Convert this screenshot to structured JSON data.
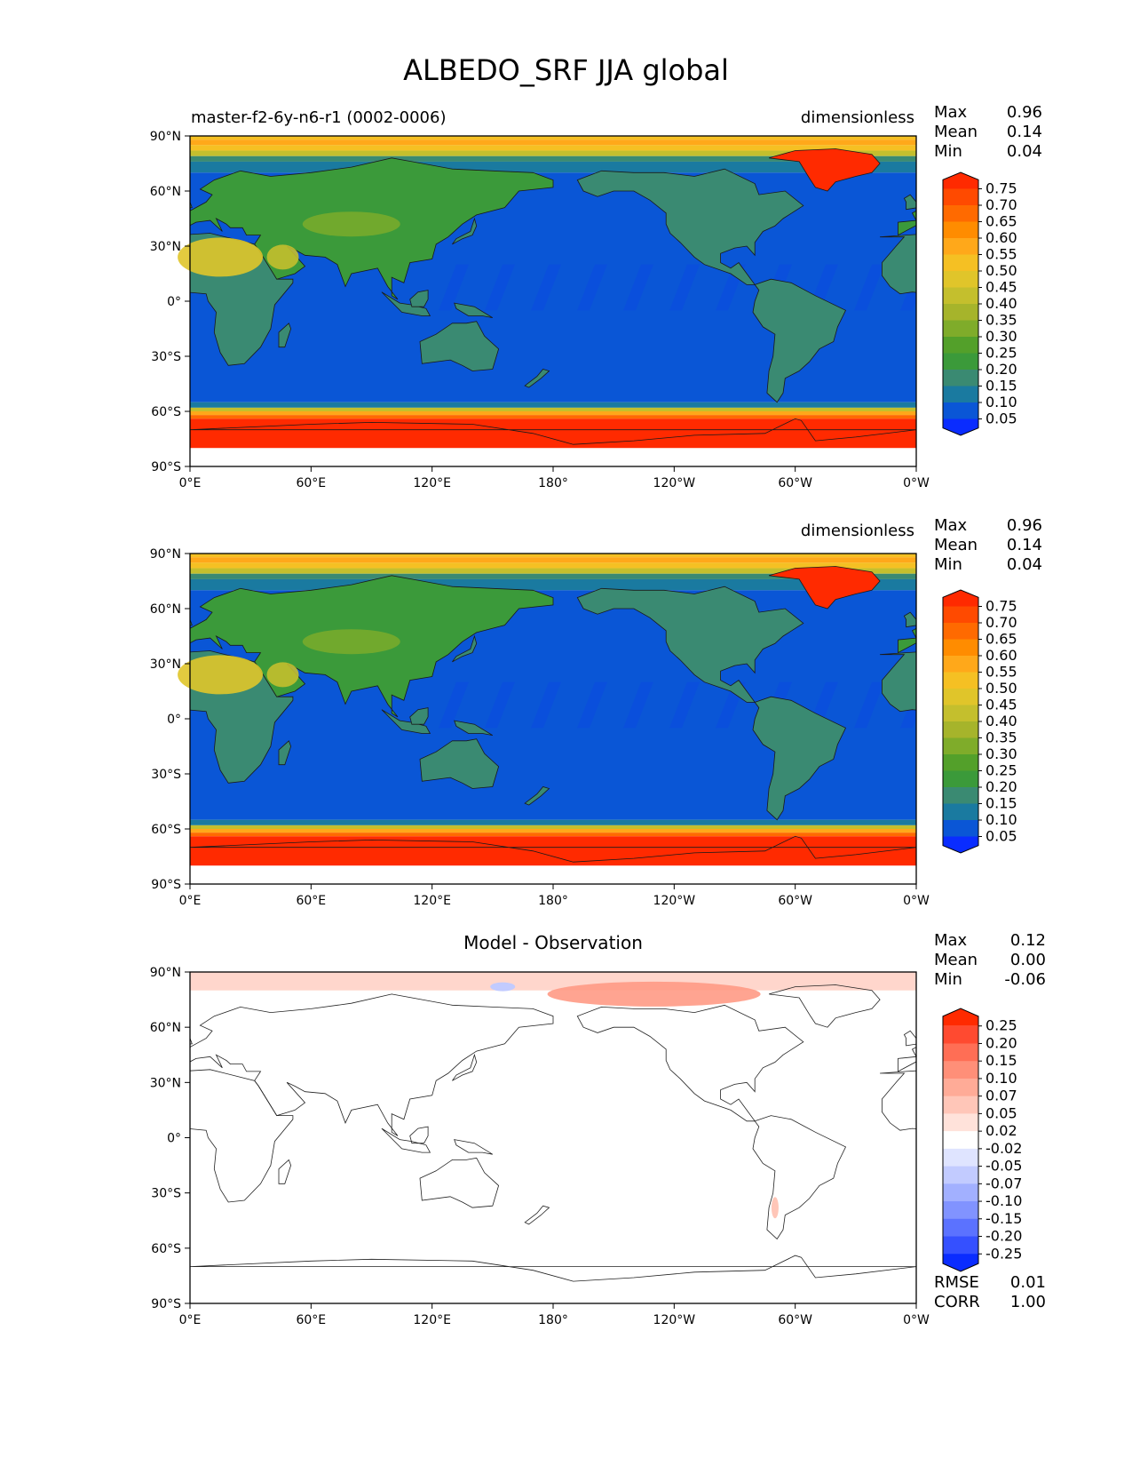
{
  "figure": {
    "title": "ALBEDO_SRF JJA global"
  },
  "chart_data": [
    {
      "type": "heatmap",
      "panel": "test",
      "title_left": "master-f2-6y-n6-r1 (0002-0006)",
      "title_right": "dimensionless",
      "stats": {
        "max_label": "Max",
        "max": "0.96",
        "mean_label": "Mean",
        "mean": "0.14",
        "min_label": "Min",
        "min": "0.04"
      },
      "xlim": [
        0,
        360
      ],
      "ylim": [
        -90,
        90
      ],
      "x_ticks": [
        "0°E",
        "60°E",
        "120°E",
        "180°",
        "120°W",
        "60°W",
        "0°W"
      ],
      "y_ticks": [
        "90°N",
        "60°N",
        "30°N",
        "0°",
        "30°S",
        "60°S",
        "90°S"
      ],
      "colorbar": {
        "levels": [
          "0.75",
          "0.70",
          "0.65",
          "0.60",
          "0.55",
          "0.50",
          "0.45",
          "0.40",
          "0.35",
          "0.30",
          "0.25",
          "0.20",
          "0.15",
          "0.10",
          "0.05"
        ],
        "colors": [
          "#ff2a00",
          "#ff4a00",
          "#ff6a00",
          "#ff8c00",
          "#ffa81a",
          "#f5c023",
          "#e0c52a",
          "#c4bf2d",
          "#a6b42b",
          "#7fac2a",
          "#53a02a",
          "#3b9a3a",
          "#3a8a72",
          "#1a7aa0",
          "#0a56d6",
          "#0a2cff"
        ]
      }
    },
    {
      "type": "heatmap",
      "panel": "reference",
      "title_left": "",
      "title_right": "dimensionless",
      "stats": {
        "max_label": "Max",
        "max": "0.96",
        "mean_label": "Mean",
        "mean": "0.14",
        "min_label": "Min",
        "min": "0.04"
      },
      "xlim": [
        0,
        360
      ],
      "ylim": [
        -90,
        90
      ],
      "x_ticks": [
        "0°E",
        "60°E",
        "120°E",
        "180°",
        "120°W",
        "60°W",
        "0°W"
      ],
      "y_ticks": [
        "90°N",
        "60°N",
        "30°N",
        "0°",
        "30°S",
        "60°S",
        "90°S"
      ],
      "colorbar": {
        "levels": [
          "0.75",
          "0.70",
          "0.65",
          "0.60",
          "0.55",
          "0.50",
          "0.45",
          "0.40",
          "0.35",
          "0.30",
          "0.25",
          "0.20",
          "0.15",
          "0.10",
          "0.05"
        ],
        "colors": [
          "#ff2a00",
          "#ff4a00",
          "#ff6a00",
          "#ff8c00",
          "#ffa81a",
          "#f5c023",
          "#e0c52a",
          "#c4bf2d",
          "#a6b42b",
          "#7fac2a",
          "#53a02a",
          "#3b9a3a",
          "#3a8a72",
          "#1a7aa0",
          "#0a56d6",
          "#0a2cff"
        ]
      }
    },
    {
      "type": "heatmap",
      "panel": "difference",
      "title_center": "Model - Observation",
      "stats": {
        "max_label": "Max",
        "max": "0.12",
        "mean_label": "Mean",
        "mean": "0.00",
        "min_label": "Min",
        "min": "-0.06"
      },
      "rmse_label": "RMSE",
      "rmse": "0.01",
      "corr_label": "CORR",
      "corr": "1.00",
      "xlim": [
        0,
        360
      ],
      "ylim": [
        -90,
        90
      ],
      "x_ticks": [
        "0°E",
        "60°E",
        "120°E",
        "180°",
        "120°W",
        "60°W",
        "0°W"
      ],
      "y_ticks": [
        "90°N",
        "60°N",
        "30°N",
        "0°",
        "30°S",
        "60°S",
        "90°S"
      ],
      "colorbar": {
        "levels": [
          "0.25",
          "0.20",
          "0.15",
          "0.10",
          "0.07",
          "0.05",
          "0.02",
          "-0.02",
          "-0.05",
          "-0.07",
          "-0.10",
          "-0.15",
          "-0.20",
          "-0.25"
        ],
        "colors": [
          "#ff2a00",
          "#ff4a30",
          "#ff6e55",
          "#ff8f78",
          "#ffab97",
          "#ffc6b8",
          "#ffe2da",
          "#ffffff",
          "#dfe4ff",
          "#c2cbff",
          "#a2b0ff",
          "#8193ff",
          "#5b72ff",
          "#3550ff",
          "#0a2cff"
        ]
      }
    }
  ]
}
